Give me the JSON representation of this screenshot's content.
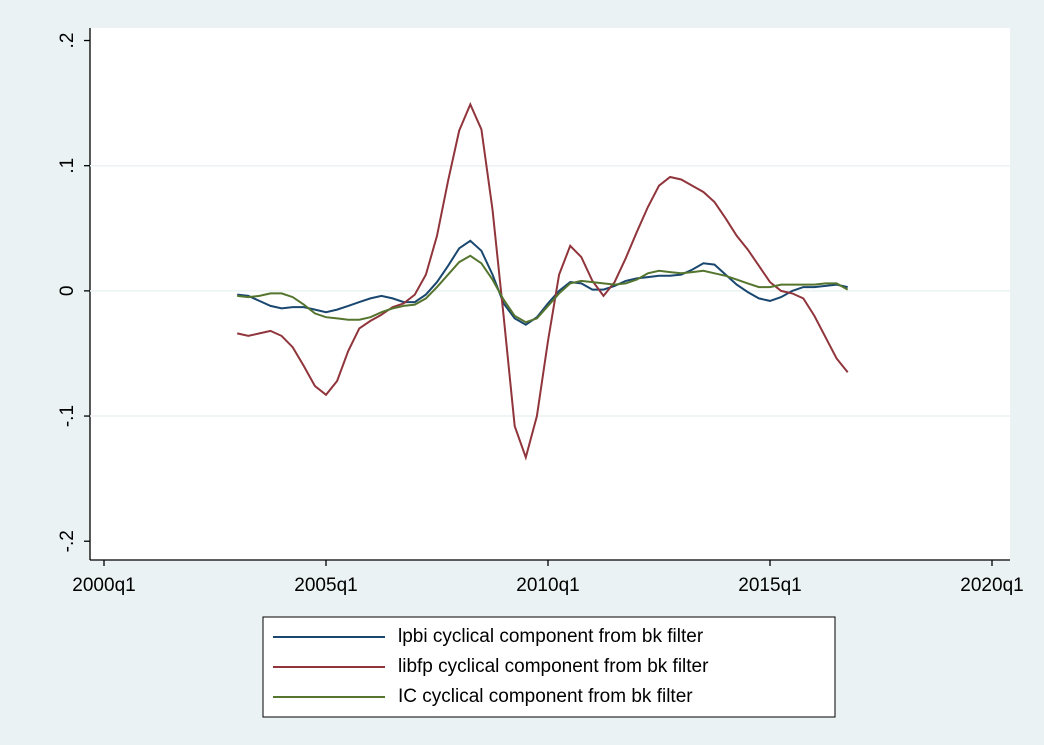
{
  "chart_data": {
    "type": "line",
    "x": [
      "2003q1",
      "2003q2",
      "2003q3",
      "2003q4",
      "2004q1",
      "2004q2",
      "2004q3",
      "2004q4",
      "2005q1",
      "2005q2",
      "2005q3",
      "2005q4",
      "2006q1",
      "2006q2",
      "2006q3",
      "2006q4",
      "2007q1",
      "2007q2",
      "2007q3",
      "2007q4",
      "2008q1",
      "2008q2",
      "2008q3",
      "2008q4",
      "2009q1",
      "2009q2",
      "2009q3",
      "2009q4",
      "2010q1",
      "2010q2",
      "2010q3",
      "2010q4",
      "2011q1",
      "2011q2",
      "2011q3",
      "2011q4",
      "2012q1",
      "2012q2",
      "2012q3",
      "2012q4",
      "2013q1",
      "2013q2",
      "2013q3",
      "2013q4",
      "2014q1",
      "2014q2",
      "2014q3",
      "2014q4",
      "2015q1",
      "2015q2",
      "2015q3",
      "2015q4",
      "2016q1",
      "2016q2",
      "2016q3",
      "2016q4"
    ],
    "series": [
      {
        "name": "lpbi cyclical component from bk filter",
        "color": "#1a476f",
        "values": [
          -0.003,
          -0.004,
          -0.008,
          -0.012,
          -0.014,
          -0.013,
          -0.013,
          -0.015,
          -0.017,
          -0.015,
          -0.012,
          -0.009,
          -0.006,
          -0.004,
          -0.006,
          -0.009,
          -0.009,
          -0.003,
          0.007,
          0.02,
          0.034,
          0.04,
          0.032,
          0.013,
          -0.01,
          -0.022,
          -0.027,
          -0.021,
          -0.01,
          0.0,
          0.007,
          0.006,
          0.001,
          0.001,
          0.004,
          0.008,
          0.01,
          0.011,
          0.012,
          0.012,
          0.013,
          0.017,
          0.022,
          0.021,
          0.013,
          0.005,
          -0.001,
          -0.006,
          -0.008,
          -0.005,
          0.0,
          0.003,
          0.003,
          0.004,
          0.005,
          0.003
        ]
      },
      {
        "name": "libfp cyclical component from bk filter",
        "color": "#90353b",
        "values": [
          -0.034,
          -0.036,
          -0.034,
          -0.032,
          -0.036,
          -0.045,
          -0.06,
          -0.076,
          -0.083,
          -0.072,
          -0.048,
          -0.03,
          -0.024,
          -0.019,
          -0.013,
          -0.01,
          -0.003,
          0.013,
          0.044,
          0.088,
          0.128,
          0.149,
          0.129,
          0.065,
          -0.02,
          -0.108,
          -0.133,
          -0.1,
          -0.04,
          0.013,
          0.036,
          0.027,
          0.008,
          -0.004,
          0.007,
          0.026,
          0.047,
          0.067,
          0.084,
          0.091,
          0.089,
          0.084,
          0.079,
          0.071,
          0.058,
          0.044,
          0.033,
          0.02,
          0.007,
          0.0,
          -0.002,
          -0.006,
          -0.02,
          -0.037,
          -0.054,
          -0.065
        ]
      },
      {
        "name": "IC cyclical component from bk filter",
        "color": "#55752f",
        "values": [
          -0.004,
          -0.005,
          -0.004,
          -0.002,
          -0.002,
          -0.005,
          -0.011,
          -0.018,
          -0.021,
          -0.022,
          -0.023,
          -0.023,
          -0.021,
          -0.017,
          -0.014,
          -0.012,
          -0.011,
          -0.006,
          0.003,
          0.013,
          0.023,
          0.028,
          0.022,
          0.009,
          -0.007,
          -0.02,
          -0.025,
          -0.022,
          -0.012,
          -0.002,
          0.006,
          0.008,
          0.007,
          0.006,
          0.005,
          0.006,
          0.009,
          0.014,
          0.016,
          0.015,
          0.014,
          0.015,
          0.016,
          0.014,
          0.012,
          0.009,
          0.006,
          0.003,
          0.003,
          0.005,
          0.005,
          0.005,
          0.005,
          0.006,
          0.006,
          0.001
        ]
      }
    ],
    "xlim": [
      "2000q1",
      "2020q1"
    ],
    "xticks": [
      "2000q1",
      "2005q1",
      "2010q1",
      "2015q1",
      "2020q1"
    ],
    "ylim": [
      -0.215,
      0.21
    ],
    "yticks": [
      {
        "value": -0.2,
        "label": "-.2"
      },
      {
        "value": -0.1,
        "label": "-.1"
      },
      0,
      {
        "value": 0.1,
        "label": ".1"
      },
      {
        "value": 0.2,
        "label": ".2"
      }
    ],
    "grid": true,
    "legend": "bottom"
  }
}
